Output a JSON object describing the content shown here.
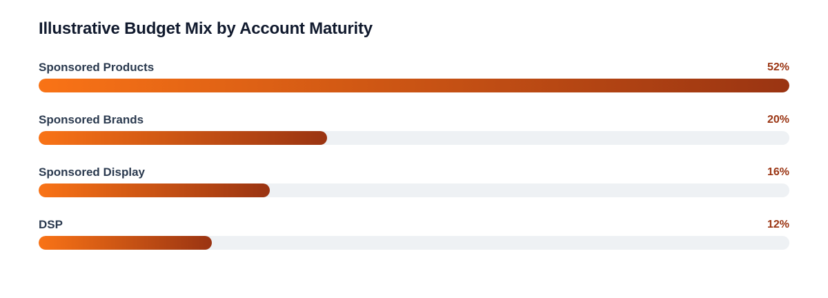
{
  "chart_data": {
    "type": "bar",
    "orientation": "horizontal",
    "title": "Illustrative Budget Mix by Account Maturity",
    "categories": [
      "Sponsored Products",
      "Sponsored Brands",
      "Sponsored Display",
      "DSP"
    ],
    "values": [
      52,
      20,
      16,
      12
    ],
    "value_labels": [
      "52%",
      "20%",
      "16%",
      "12%"
    ],
    "unit": "%",
    "bar_scale_max": 52,
    "grid": false,
    "legend": "none",
    "colors": {
      "bar_start": "#f97316",
      "bar_end": "#9a3412",
      "track": "#eef1f4",
      "label": "#2b3a4f",
      "value": "#9a3412",
      "title": "#111a2e"
    }
  }
}
